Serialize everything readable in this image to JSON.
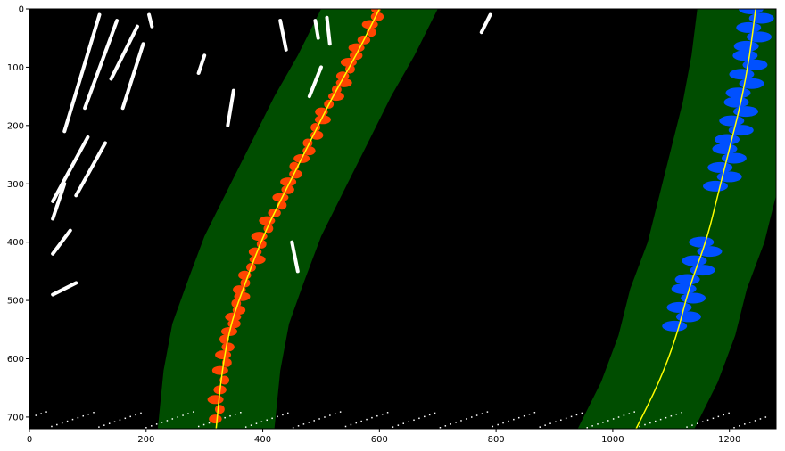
{
  "chart_data": {
    "type": "scatter",
    "title": "",
    "xlabel": "",
    "ylabel": "",
    "xlim": [
      0,
      1280
    ],
    "ylim": [
      720,
      0
    ],
    "x_ticks": [
      0,
      200,
      400,
      600,
      800,
      1000,
      1200
    ],
    "y_ticks": [
      0,
      100,
      200,
      300,
      400,
      500,
      600,
      700
    ],
    "grid": false,
    "colors": {
      "background": "#000000",
      "search_margin": "#004d00",
      "left_lane_pixels": "#ff4500",
      "right_lane_pixels": "#0050ff",
      "other_pixels": "#ffffff",
      "fit_line": "#ffff00"
    },
    "left_fit": {
      "points": [
        [
          600,
          0
        ],
        [
          560,
          80
        ],
        [
          520,
          150
        ],
        [
          480,
          230
        ],
        [
          440,
          310
        ],
        [
          400,
          390
        ],
        [
          370,
          470
        ],
        [
          345,
          540
        ],
        [
          330,
          620
        ],
        [
          320,
          720
        ]
      ],
      "margin": 100
    },
    "right_fit": {
      "points": [
        [
          1245,
          0
        ],
        [
          1235,
          80
        ],
        [
          1220,
          160
        ],
        [
          1200,
          240
        ],
        [
          1180,
          320
        ],
        [
          1160,
          400
        ],
        [
          1130,
          480
        ],
        [
          1110,
          560
        ],
        [
          1080,
          640
        ],
        [
          1040,
          720
        ]
      ],
      "margin": 100
    }
  }
}
